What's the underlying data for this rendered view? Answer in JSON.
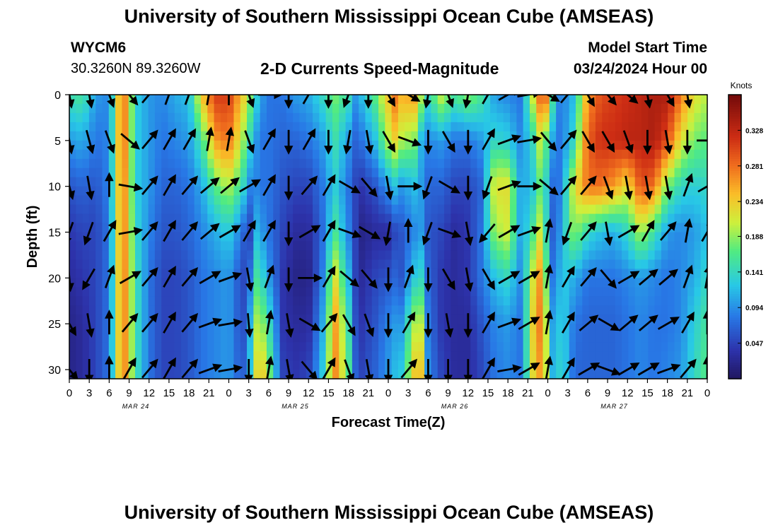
{
  "header": {
    "title": "University of Southern Mississippi Ocean Cube (AMSEAS)",
    "station_id": "WYCM6",
    "station_coords": "30.3260N  89.3260W",
    "plot_title": "2-D Currents Speed-Magnitude",
    "model_start_label": "Model Start Time",
    "model_start_value": "03/24/2024 Hour 00"
  },
  "footer": {
    "title": "University of Southern Mississippi Ocean Cube (AMSEAS)"
  },
  "chart_data": {
    "type": "heatmap",
    "title": "2-D Currents Speed-Magnitude",
    "xlabel": "Forecast Time(Z)",
    "ylabel": "Depth (ft)",
    "x_hours_range": [
      0,
      96
    ],
    "y_depth_range_ft": [
      0,
      31
    ],
    "x_tick_labels": [
      "0",
      "3",
      "6",
      "9",
      "12",
      "15",
      "18",
      "21",
      "0",
      "3",
      "6",
      "9",
      "12",
      "15",
      "18",
      "21",
      "0",
      "3",
      "6",
      "9",
      "12",
      "15",
      "18",
      "21",
      "0",
      "3",
      "6",
      "9",
      "12",
      "15",
      "18",
      "21",
      "0"
    ],
    "x_date_labels": [
      {
        "label": "MAR 24",
        "hour": 10
      },
      {
        "label": "MAR 25",
        "hour": 34
      },
      {
        "label": "MAR 26",
        "hour": 58
      },
      {
        "label": "MAR 27",
        "hour": 82
      }
    ],
    "y_ticks": [
      0,
      5,
      10,
      15,
      20,
      25,
      30
    ],
    "colorbar": {
      "unit_label": "Knots",
      "ticks": [
        "0.047",
        "0.094",
        "0.141",
        "0.188",
        "0.234",
        "0.281",
        "0.328"
      ],
      "range": [
        0.0,
        0.375
      ],
      "colormap": "jet"
    },
    "speed_columns": [
      {
        "hour": 0,
        "profile": [
          0.15,
          0.1,
          0.06,
          0.04,
          0.03,
          0.02,
          0.02
        ]
      },
      {
        "hour": 2,
        "profile": [
          0.16,
          0.11,
          0.07,
          0.05,
          0.04,
          0.03,
          0.03
        ]
      },
      {
        "hour": 4,
        "profile": [
          0.1,
          0.08,
          0.06,
          0.05,
          0.05,
          0.05,
          0.05
        ]
      },
      {
        "hour": 6,
        "profile": [
          0.09,
          0.09,
          0.09,
          0.08,
          0.08,
          0.08,
          0.08
        ]
      },
      {
        "hour": 8,
        "profile": [
          0.3,
          0.3,
          0.29,
          0.29,
          0.29,
          0.29,
          0.29
        ]
      },
      {
        "hour": 10,
        "profile": [
          0.13,
          0.13,
          0.13,
          0.14,
          0.15,
          0.15,
          0.15
        ]
      },
      {
        "hour": 12,
        "profile": [
          0.1,
          0.1,
          0.1,
          0.09,
          0.08,
          0.08,
          0.08
        ]
      },
      {
        "hour": 14,
        "profile": [
          0.09,
          0.08,
          0.07,
          0.06,
          0.05,
          0.05,
          0.05
        ]
      },
      {
        "hour": 16,
        "profile": [
          0.11,
          0.09,
          0.07,
          0.06,
          0.05,
          0.05,
          0.05
        ]
      },
      {
        "hour": 18,
        "profile": [
          0.12,
          0.1,
          0.08,
          0.07,
          0.06,
          0.06,
          0.06
        ]
      },
      {
        "hour": 20,
        "profile": [
          0.24,
          0.16,
          0.11,
          0.09,
          0.08,
          0.08,
          0.08
        ]
      },
      {
        "hour": 22,
        "profile": [
          0.31,
          0.26,
          0.17,
          0.11,
          0.09,
          0.09,
          0.09
        ]
      },
      {
        "hour": 24,
        "profile": [
          0.31,
          0.28,
          0.2,
          0.13,
          0.1,
          0.1,
          0.1
        ]
      },
      {
        "hour": 26,
        "profile": [
          0.24,
          0.2,
          0.15,
          0.08,
          0.05,
          0.05,
          0.06
        ]
      },
      {
        "hour": 27,
        "profile": [
          0.2,
          0.15,
          0.09,
          0.03,
          0.06,
          0.09,
          0.1
        ]
      },
      {
        "hour": 28,
        "profile": [
          0.14,
          0.1,
          0.09,
          0.12,
          0.16,
          0.2,
          0.22
        ]
      },
      {
        "hour": 29,
        "profile": [
          0.1,
          0.08,
          0.08,
          0.1,
          0.14,
          0.19,
          0.24
        ]
      },
      {
        "hour": 30,
        "profile": [
          0.08,
          0.08,
          0.08,
          0.08,
          0.1,
          0.15,
          0.19
        ]
      },
      {
        "hour": 32,
        "profile": [
          0.08,
          0.07,
          0.06,
          0.05,
          0.04,
          0.04,
          0.05
        ]
      },
      {
        "hour": 34,
        "profile": [
          0.1,
          0.07,
          0.05,
          0.03,
          0.02,
          0.03,
          0.04
        ]
      },
      {
        "hour": 36,
        "profile": [
          0.11,
          0.08,
          0.05,
          0.03,
          0.02,
          0.03,
          0.05
        ]
      },
      {
        "hour": 38,
        "profile": [
          0.14,
          0.1,
          0.08,
          0.07,
          0.08,
          0.1,
          0.12
        ]
      },
      {
        "hour": 40,
        "profile": [
          0.18,
          0.15,
          0.13,
          0.16,
          0.22,
          0.26,
          0.27
        ]
      },
      {
        "hour": 42,
        "profile": [
          0.15,
          0.1,
          0.08,
          0.09,
          0.12,
          0.15,
          0.17
        ]
      },
      {
        "hour": 43,
        "profile": [
          0.1,
          0.07,
          0.05,
          0.05,
          0.05,
          0.06,
          0.07
        ]
      },
      {
        "hour": 44,
        "profile": [
          0.12,
          0.08,
          0.04,
          0.02,
          0.03,
          0.04,
          0.05
        ]
      },
      {
        "hour": 46,
        "profile": [
          0.17,
          0.12,
          0.06,
          0.03,
          0.05,
          0.06,
          0.07
        ]
      },
      {
        "hour": 48,
        "profile": [
          0.24,
          0.2,
          0.1,
          0.03,
          0.06,
          0.09,
          0.1
        ]
      },
      {
        "hour": 49,
        "profile": [
          0.28,
          0.23,
          0.12,
          0.05,
          0.07,
          0.1,
          0.12
        ]
      },
      {
        "hour": 50,
        "profile": [
          0.25,
          0.2,
          0.1,
          0.06,
          0.06,
          0.1,
          0.13
        ]
      },
      {
        "hour": 52,
        "profile": [
          0.26,
          0.18,
          0.12,
          0.09,
          0.13,
          0.2,
          0.24
        ]
      },
      {
        "hour": 53,
        "profile": [
          0.2,
          0.11,
          0.1,
          0.1,
          0.14,
          0.2,
          0.24
        ]
      },
      {
        "hour": 54,
        "profile": [
          0.14,
          0.09,
          0.07,
          0.06,
          0.07,
          0.08,
          0.09
        ]
      },
      {
        "hour": 56,
        "profile": [
          0.21,
          0.1,
          0.07,
          0.05,
          0.04,
          0.04,
          0.05
        ]
      },
      {
        "hour": 58,
        "profile": [
          0.16,
          0.08,
          0.05,
          0.03,
          0.03,
          0.03,
          0.03
        ]
      },
      {
        "hour": 60,
        "profile": [
          0.19,
          0.08,
          0.05,
          0.04,
          0.04,
          0.03,
          0.03
        ]
      },
      {
        "hour": 62,
        "profile": [
          0.16,
          0.1,
          0.07,
          0.08,
          0.08,
          0.06,
          0.05
        ]
      },
      {
        "hour": 64,
        "profile": [
          0.1,
          0.14,
          0.22,
          0.19,
          0.12,
          0.09,
          0.08
        ]
      },
      {
        "hour": 66,
        "profile": [
          0.09,
          0.13,
          0.22,
          0.21,
          0.14,
          0.1,
          0.09
        ]
      },
      {
        "hour": 68,
        "profile": [
          0.08,
          0.09,
          0.1,
          0.1,
          0.09,
          0.08,
          0.08
        ]
      },
      {
        "hour": 70,
        "profile": [
          0.23,
          0.15,
          0.13,
          0.17,
          0.23,
          0.25,
          0.24
        ]
      },
      {
        "hour": 71,
        "profile": [
          0.3,
          0.22,
          0.18,
          0.22,
          0.27,
          0.28,
          0.26
        ]
      },
      {
        "hour": 72,
        "profile": [
          0.28,
          0.15,
          0.12,
          0.12,
          0.15,
          0.18,
          0.19
        ]
      },
      {
        "hour": 73,
        "profile": [
          0.12,
          0.09,
          0.06,
          0.05,
          0.06,
          0.08,
          0.09
        ]
      },
      {
        "hour": 74,
        "profile": [
          0.08,
          0.08,
          0.09,
          0.11,
          0.13,
          0.14,
          0.15
        ]
      },
      {
        "hour": 76,
        "profile": [
          0.12,
          0.14,
          0.22,
          0.19,
          0.11,
          0.08,
          0.07
        ]
      },
      {
        "hour": 78,
        "profile": [
          0.26,
          0.29,
          0.28,
          0.14,
          0.08,
          0.07,
          0.07
        ]
      },
      {
        "hour": 80,
        "profile": [
          0.3,
          0.32,
          0.28,
          0.12,
          0.08,
          0.07,
          0.07
        ]
      },
      {
        "hour": 82,
        "profile": [
          0.31,
          0.32,
          0.26,
          0.11,
          0.08,
          0.07,
          0.07
        ]
      },
      {
        "hour": 84,
        "profile": [
          0.32,
          0.33,
          0.22,
          0.14,
          0.09,
          0.08,
          0.08
        ]
      },
      {
        "hour": 86,
        "profile": [
          0.33,
          0.33,
          0.3,
          0.2,
          0.1,
          0.09,
          0.09
        ]
      },
      {
        "hour": 88,
        "profile": [
          0.34,
          0.34,
          0.28,
          0.15,
          0.09,
          0.08,
          0.08
        ]
      },
      {
        "hour": 90,
        "profile": [
          0.34,
          0.3,
          0.18,
          0.1,
          0.08,
          0.08,
          0.09
        ]
      },
      {
        "hour": 92,
        "profile": [
          0.28,
          0.22,
          0.14,
          0.09,
          0.09,
          0.09,
          0.1
        ]
      },
      {
        "hour": 94,
        "profile": [
          0.22,
          0.18,
          0.13,
          0.1,
          0.11,
          0.13,
          0.14
        ]
      },
      {
        "hour": 96,
        "profile": [
          0.2,
          0.17,
          0.14,
          0.12,
          0.14,
          0.16,
          0.17
        ]
      }
    ],
    "profile_depths_ft": [
      0,
      5,
      10,
      15,
      20,
      25,
      31
    ],
    "vectors": {
      "depths_ft": [
        0,
        5,
        10,
        15,
        20,
        25,
        30
      ],
      "hours": [
        0,
        3,
        6,
        9,
        12,
        15,
        18,
        21,
        24,
        27,
        30,
        33,
        36,
        39,
        42,
        45,
        48,
        51,
        54,
        57,
        60,
        63,
        66,
        69,
        72,
        75,
        78,
        81,
        84,
        87,
        90,
        93,
        96
      ],
      "samples": [
        {
          "hour": 0,
          "directions_deg": [
            170,
            170,
            165,
            200,
            175,
            150,
            140
          ]
        },
        {
          "hour": 3,
          "directions_deg": [
            170,
            165,
            170,
            200,
            210,
            170,
            180
          ]
        },
        {
          "hour": 6,
          "directions_deg": [
            160,
            160,
            0,
            30,
            20,
            0,
            0
          ]
        },
        {
          "hour": 9,
          "directions_deg": [
            140,
            130,
            100,
            80,
            60,
            40,
            30
          ]
        },
        {
          "hour": 12,
          "directions_deg": [
            40,
            40,
            40,
            40,
            40,
            40,
            40
          ]
        },
        {
          "hour": 15,
          "directions_deg": [
            20,
            30,
            30,
            30,
            30,
            30,
            30
          ]
        },
        {
          "hour": 18,
          "directions_deg": [
            20,
            30,
            40,
            40,
            40,
            40,
            40
          ]
        },
        {
          "hour": 21,
          "directions_deg": [
            10,
            10,
            50,
            50,
            60,
            70,
            70
          ]
        },
        {
          "hour": 24,
          "directions_deg": [
            0,
            10,
            50,
            60,
            70,
            80,
            80
          ]
        },
        {
          "hour": 27,
          "directions_deg": [
            160,
            160,
            60,
            30,
            170,
            175,
            180
          ]
        },
        {
          "hour": 30,
          "directions_deg": [
            90,
            30,
            30,
            30,
            20,
            10,
            10
          ]
        },
        {
          "hour": 33,
          "directions_deg": [
            180,
            180,
            180,
            180,
            180,
            170,
            170
          ]
        },
        {
          "hour": 36,
          "directions_deg": [
            30,
            30,
            40,
            60,
            90,
            120,
            140
          ]
        },
        {
          "hour": 39,
          "directions_deg": [
            180,
            180,
            30,
            30,
            30,
            40,
            30
          ]
        },
        {
          "hour": 42,
          "directions_deg": [
            200,
            190,
            120,
            110,
            130,
            150,
            160
          ]
        },
        {
          "hour": 45,
          "directions_deg": [
            180,
            170,
            140,
            120,
            140,
            160,
            170
          ]
        },
        {
          "hour": 48,
          "directions_deg": [
            150,
            150,
            170,
            190,
            180,
            180,
            180
          ]
        },
        {
          "hour": 51,
          "directions_deg": [
            120,
            110,
            90,
            0,
            20,
            30,
            40
          ]
        },
        {
          "hour": 54,
          "directions_deg": [
            190,
            180,
            200,
            200,
            180,
            180,
            180
          ]
        },
        {
          "hour": 57,
          "directions_deg": [
            160,
            150,
            120,
            110,
            150,
            170,
            180
          ]
        },
        {
          "hour": 60,
          "directions_deg": [
            190,
            180,
            180,
            170,
            170,
            180,
            180
          ]
        },
        {
          "hour": 63,
          "directions_deg": [
            30,
            30,
            200,
            220,
            150,
            30,
            30
          ]
        },
        {
          "hour": 66,
          "directions_deg": [
            60,
            70,
            70,
            60,
            60,
            70,
            80
          ]
        },
        {
          "hour": 69,
          "directions_deg": [
            80,
            80,
            90,
            70,
            60,
            60,
            60
          ]
        },
        {
          "hour": 72,
          "directions_deg": [
            120,
            140,
            130,
            10,
            10,
            10,
            10
          ]
        },
        {
          "hour": 75,
          "directions_deg": [
            40,
            40,
            40,
            200,
            30,
            30,
            30
          ]
        },
        {
          "hour": 78,
          "directions_deg": [
            150,
            150,
            40,
            40,
            40,
            50,
            60
          ]
        },
        {
          "hour": 81,
          "directions_deg": [
            140,
            150,
            160,
            170,
            140,
            120,
            110
          ]
        },
        {
          "hour": 84,
          "directions_deg": [
            130,
            160,
            170,
            60,
            60,
            50,
            60
          ]
        },
        {
          "hour": 87,
          "directions_deg": [
            170,
            180,
            170,
            30,
            50,
            50,
            60
          ]
        },
        {
          "hour": 90,
          "directions_deg": [
            150,
            170,
            170,
            40,
            50,
            60,
            70
          ]
        },
        {
          "hour": 93,
          "directions_deg": [
            170,
            180,
            20,
            10,
            20,
            30,
            40
          ]
        },
        {
          "hour": 96,
          "directions_deg": [
            130,
            90,
            60,
            30,
            10,
            0,
            0
          ]
        }
      ]
    },
    "grid": false,
    "legend": "colorbar-right"
  }
}
